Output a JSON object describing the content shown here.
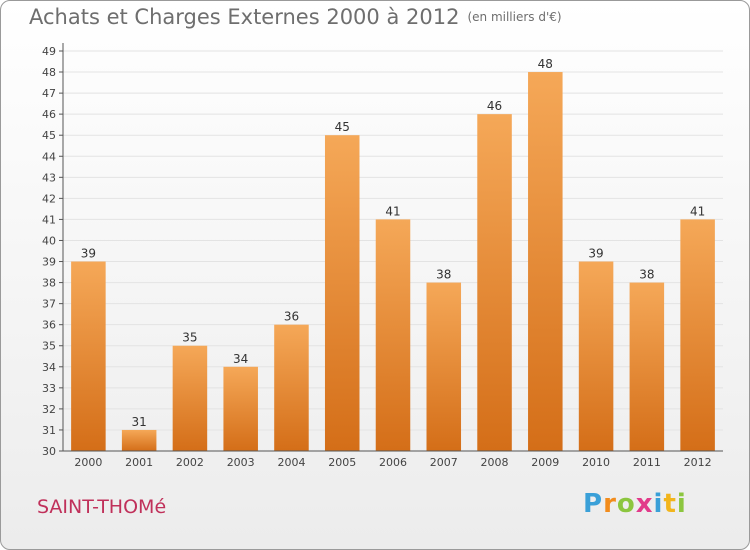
{
  "header": {
    "title": "Achats et Charges Externes 2000 à 2012",
    "unit": "(en milliers d'€)"
  },
  "footer": {
    "town": "SAINT-THOMé",
    "logo_letters": [
      "P",
      "r",
      "o",
      "x",
      "i",
      "t",
      "i"
    ],
    "logo_colors": [
      "#3aa0d8",
      "#f28c1c",
      "#8cc63f",
      "#e23b8a",
      "#3aa0d8",
      "#f2b51c",
      "#8cc63f"
    ]
  },
  "chart_data": {
    "type": "bar",
    "title": "Achats et Charges Externes 2000 à 2012",
    "xlabel": "",
    "ylabel": "",
    "ylim": [
      30,
      49
    ],
    "yticks": [
      30,
      31,
      32,
      33,
      34,
      35,
      36,
      37,
      38,
      39,
      40,
      41,
      42,
      43,
      44,
      45,
      46,
      47,
      48,
      49
    ],
    "categories": [
      "2000",
      "2001",
      "2002",
      "2003",
      "2004",
      "2005",
      "2006",
      "2007",
      "2008",
      "2009",
      "2010",
      "2011",
      "2012"
    ],
    "values": [
      39,
      31,
      35,
      34,
      36,
      45,
      41,
      38,
      46,
      48,
      39,
      38,
      41
    ],
    "bar_color_top": "#f5a858",
    "bar_color_bottom": "#d46e18",
    "gridlines": true
  }
}
